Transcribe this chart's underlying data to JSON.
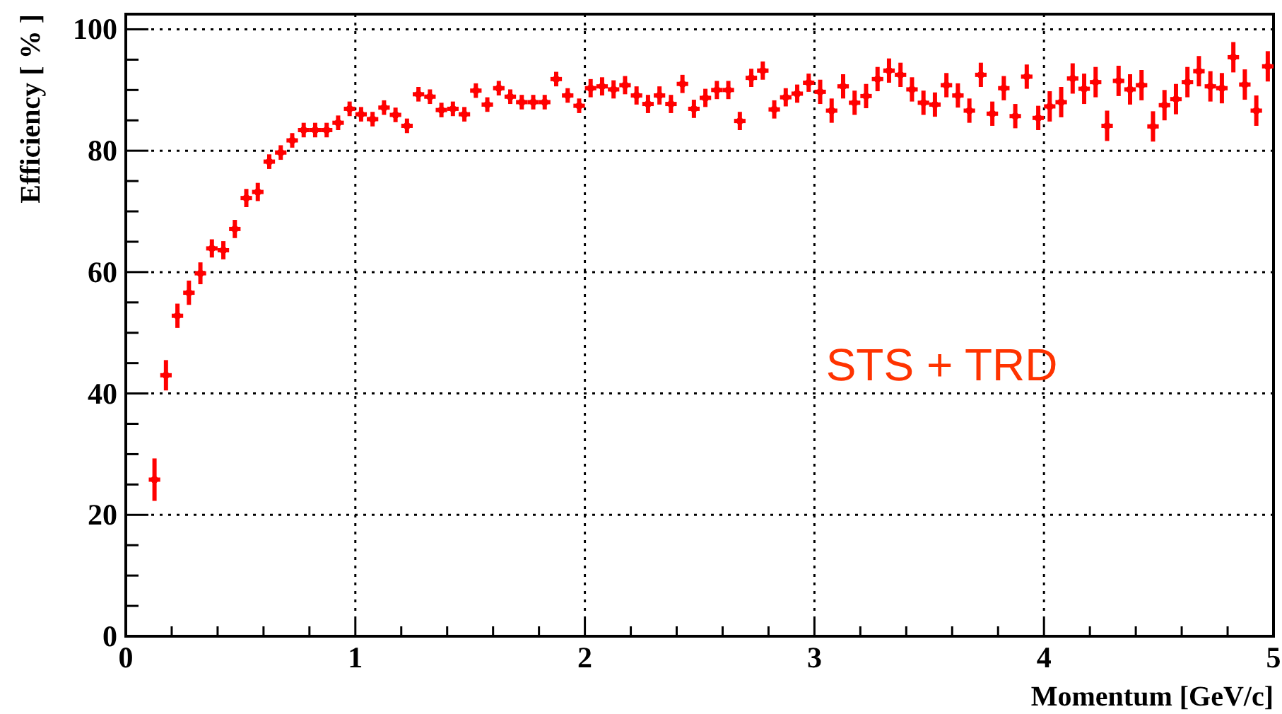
{
  "chart_data": {
    "type": "scatter",
    "xlabel": "Momentum [GeV/c]",
    "ylabel": "Efficiency [ % ]",
    "annotations": [
      "STS + TRD"
    ],
    "xlim": [
      0,
      5
    ],
    "ylim": [
      0,
      102.5
    ],
    "xticks": [
      0,
      {
        "value": 0.2,
        "label": null
      },
      {
        "value": 0.4,
        "label": null
      },
      {
        "value": 0.6,
        "label": null
      },
      {
        "value": 0.8,
        "label": null
      },
      1,
      {
        "value": 1.2,
        "label": null
      },
      {
        "value": 1.4,
        "label": null
      },
      {
        "value": 1.6,
        "label": null
      },
      {
        "value": 1.8,
        "label": null
      },
      2,
      {
        "value": 2.2,
        "label": null
      },
      {
        "value": 2.4,
        "label": null
      },
      {
        "value": 2.6,
        "label": null
      },
      {
        "value": 2.8,
        "label": null
      },
      3,
      {
        "value": 3.2,
        "label": null
      },
      {
        "value": 3.4,
        "label": null
      },
      {
        "value": 3.6,
        "label": null
      },
      {
        "value": 3.8,
        "label": null
      },
      4,
      {
        "value": 4.2,
        "label": null
      },
      {
        "value": 4.4,
        "label": null
      },
      {
        "value": 4.6,
        "label": null
      },
      {
        "value": 4.8,
        "label": null
      },
      5
    ],
    "yticks": [
      0,
      {
        "value": 5,
        "label": null
      },
      {
        "value": 10,
        "label": null
      },
      {
        "value": 15,
        "label": null
      },
      20,
      {
        "value": 25,
        "label": null
      },
      {
        "value": 30,
        "label": null
      },
      {
        "value": 35,
        "label": null
      },
      40,
      {
        "value": 45,
        "label": null
      },
      {
        "value": 50,
        "label": null
      },
      {
        "value": 55,
        "label": null
      },
      60,
      {
        "value": 65,
        "label": null
      },
      {
        "value": 70,
        "label": null
      },
      {
        "value": 75,
        "label": null
      },
      80,
      {
        "value": 85,
        "label": null
      },
      {
        "value": 90,
        "label": null
      },
      {
        "value": 95,
        "label": null
      },
      100
    ],
    "grid": true,
    "series": [
      {
        "color": "#ff0000",
        "x": [
          0.125,
          0.175,
          0.225,
          0.275,
          0.325,
          0.375,
          0.425,
          0.475,
          0.525,
          0.575,
          0.625,
          0.675,
          0.725,
          0.775,
          0.825,
          0.875,
          0.925,
          0.975,
          1.025,
          1.075,
          1.125,
          1.175,
          1.225,
          1.275,
          1.325,
          1.375,
          1.425,
          1.475,
          1.525,
          1.575,
          1.625,
          1.675,
          1.725,
          1.775,
          1.825,
          1.875,
          1.925,
          1.975,
          2.025,
          2.075,
          2.125,
          2.175,
          2.225,
          2.275,
          2.325,
          2.375,
          2.425,
          2.475,
          2.525,
          2.575,
          2.625,
          2.675,
          2.725,
          2.775,
          2.825,
          2.875,
          2.925,
          2.975,
          3.025,
          3.075,
          3.125,
          3.175,
          3.225,
          3.275,
          3.325,
          3.375,
          3.425,
          3.475,
          3.525,
          3.575,
          3.625,
          3.675,
          3.725,
          3.775,
          3.825,
          3.875,
          3.925,
          3.975,
          4.025,
          4.075,
          4.125,
          4.175,
          4.225,
          4.275,
          4.325,
          4.375,
          4.425,
          4.475,
          4.525,
          4.575,
          4.625,
          4.675,
          4.725,
          4.775,
          4.825,
          4.875,
          4.925,
          4.975
        ],
        "values": [
          25.8,
          43.0,
          52.8,
          56.6,
          59.8,
          63.9,
          63.6,
          67.1,
          72.2,
          73.2,
          78.2,
          79.7,
          81.7,
          83.4,
          83.4,
          83.4,
          84.6,
          86.9,
          86.0,
          85.2,
          87.1,
          85.9,
          84.1,
          89.3,
          88.9,
          86.7,
          86.9,
          86.0,
          89.9,
          87.6,
          90.3,
          88.9,
          88.0,
          88.0,
          88.0,
          91.8,
          89.1,
          87.4,
          90.3,
          90.6,
          90.1,
          90.8,
          89.1,
          87.7,
          89.1,
          87.7,
          91.0,
          86.9,
          88.7,
          90.0,
          90.0,
          84.9,
          92.0,
          93.2,
          86.8,
          88.8,
          89.4,
          91.2,
          89.7,
          86.6,
          90.6,
          87.9,
          89.0,
          91.8,
          93.2,
          92.5,
          90.1,
          87.9,
          87.6,
          90.8,
          89.1,
          86.6,
          92.5,
          86.1,
          90.3,
          85.7,
          92.2,
          85.4,
          87.3,
          88.0,
          91.9,
          90.2,
          91.3,
          84.1,
          91.5,
          90.1,
          90.8,
          84.0,
          87.5,
          88.5,
          91.3,
          93.1,
          90.6,
          90.3,
          95.4,
          90.9,
          86.6,
          93.9
        ],
        "errors": [
          3.5,
          2.5,
          2,
          2,
          1.8,
          1.5,
          1.5,
          1.5,
          1.5,
          1.5,
          1.2,
          1.2,
          1.2,
          1.2,
          1.2,
          1.2,
          1.2,
          1.2,
          1.2,
          1.2,
          1.2,
          1.2,
          1.2,
          1.2,
          1.2,
          1.2,
          1.2,
          1.2,
          1.2,
          1.2,
          1.2,
          1.2,
          1.2,
          1.2,
          1.2,
          1.2,
          1.2,
          1.2,
          1.5,
          1.5,
          1.5,
          1.5,
          1.5,
          1.5,
          1.5,
          1.5,
          1.5,
          1.5,
          1.5,
          1.5,
          1.5,
          1.5,
          1.5,
          1.5,
          1.5,
          1.5,
          1.5,
          1.5,
          2,
          2,
          2,
          2,
          2,
          2,
          2,
          2,
          2,
          2,
          2,
          2,
          2,
          2,
          2,
          2,
          2,
          2,
          2,
          2,
          2.5,
          2.5,
          2.5,
          2.5,
          2.5,
          2.5,
          2.5,
          2.5,
          2.5,
          2.5,
          2.5,
          2.5,
          2.5,
          2.5,
          2.5,
          2.5,
          2.5,
          2.5,
          2.5,
          2.5
        ],
        "xerrors": [
          0.025,
          0.025,
          0.025,
          0.025,
          0.025,
          0.025,
          0.025,
          0.025,
          0.025,
          0.025,
          0.025,
          0.025,
          0.025,
          0.025,
          0.025,
          0.025,
          0.025,
          0.025,
          0.025,
          0.025,
          0.025,
          0.025,
          0.025,
          0.025,
          0.025,
          0.025,
          0.025,
          0.025,
          0.025,
          0.025,
          0.025,
          0.025,
          0.025,
          0.025,
          0.025,
          0.025,
          0.025,
          0.025,
          0.025,
          0.025,
          0.025,
          0.025,
          0.025,
          0.025,
          0.025,
          0.025,
          0.025,
          0.025,
          0.025,
          0.025,
          0.025,
          0.025,
          0.025,
          0.025,
          0.025,
          0.025,
          0.025,
          0.025,
          0.025,
          0.025,
          0.025,
          0.025,
          0.025,
          0.025,
          0.025,
          0.025,
          0.025,
          0.025,
          0.025,
          0.025,
          0.025,
          0.025,
          0.025,
          0.025,
          0.025,
          0.025,
          0.025,
          0.025,
          0.025,
          0.025,
          0.025,
          0.025,
          0.025,
          0.025,
          0.025,
          0.025,
          0.025,
          0.025,
          0.025,
          0.025,
          0.025,
          0.025,
          0.025,
          0.025,
          0.025,
          0.025,
          0.025,
          0.025
        ]
      }
    ]
  }
}
